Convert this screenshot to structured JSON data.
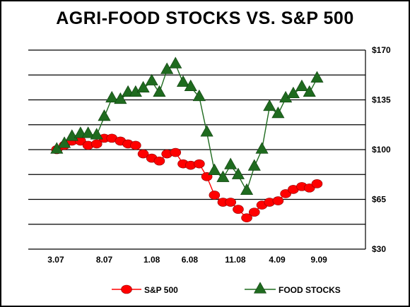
{
  "chart_data": {
    "type": "line",
    "title": "AGRI-FOOD STOCKS VS. S&P 500",
    "xlabel": "",
    "ylabel": "",
    "x_tick_labels": [
      "3.07",
      "8.07",
      "1.08",
      "6.08",
      "11.08",
      "4.09",
      "9.09"
    ],
    "y_tick_labels": [
      "$170",
      "$135",
      "$100",
      "$65",
      "$30"
    ],
    "ylim": [
      30,
      170
    ],
    "grid": "horizontal",
    "legend_position": "bottom",
    "series": [
      {
        "name": "S&P 500",
        "color": "#ff0000",
        "line_color": "#ff0000",
        "marker": "circle",
        "points": [
          {
            "x": 3.0,
            "y": 100
          },
          {
            "x": 3.8,
            "y": 103
          },
          {
            "x": 4.6,
            "y": 106
          },
          {
            "x": 5.5,
            "y": 106
          },
          {
            "x": 6.3,
            "y": 103
          },
          {
            "x": 7.2,
            "y": 104
          },
          {
            "x": 8.0,
            "y": 108
          },
          {
            "x": 8.8,
            "y": 108
          },
          {
            "x": 9.7,
            "y": 106
          },
          {
            "x": 10.5,
            "y": 104
          },
          {
            "x": 11.3,
            "y": 103
          },
          {
            "x": 12.1,
            "y": 97
          },
          {
            "x": 13.0,
            "y": 94
          },
          {
            "x": 13.8,
            "y": 92
          },
          {
            "x": 14.6,
            "y": 97
          },
          {
            "x": 15.5,
            "y": 98
          },
          {
            "x": 16.3,
            "y": 90
          },
          {
            "x": 17.1,
            "y": 89
          },
          {
            "x": 18.0,
            "y": 90
          },
          {
            "x": 18.8,
            "y": 81
          },
          {
            "x": 19.6,
            "y": 68
          },
          {
            "x": 20.5,
            "y": 63
          },
          {
            "x": 21.3,
            "y": 63
          },
          {
            "x": 22.1,
            "y": 58
          },
          {
            "x": 23.0,
            "y": 52
          },
          {
            "x": 23.8,
            "y": 56
          },
          {
            "x": 24.6,
            "y": 61
          },
          {
            "x": 25.4,
            "y": 63
          },
          {
            "x": 26.3,
            "y": 64
          },
          {
            "x": 27.1,
            "y": 69
          },
          {
            "x": 27.9,
            "y": 72
          },
          {
            "x": 28.8,
            "y": 74
          },
          {
            "x": 29.6,
            "y": 73
          },
          {
            "x": 30.4,
            "y": 76
          }
        ]
      },
      {
        "name": "FOOD STOCKS",
        "color": "#1f6b1f",
        "line_color": "#1f6b1f",
        "marker": "triangle",
        "points": [
          {
            "x": 3.0,
            "y": 100
          },
          {
            "x": 3.8,
            "y": 104
          },
          {
            "x": 4.6,
            "y": 109
          },
          {
            "x": 5.5,
            "y": 111
          },
          {
            "x": 6.3,
            "y": 111
          },
          {
            "x": 7.2,
            "y": 110
          },
          {
            "x": 8.0,
            "y": 123
          },
          {
            "x": 8.8,
            "y": 136
          },
          {
            "x": 9.7,
            "y": 135
          },
          {
            "x": 10.5,
            "y": 140
          },
          {
            "x": 11.3,
            "y": 140
          },
          {
            "x": 12.1,
            "y": 143
          },
          {
            "x": 13.0,
            "y": 148
          },
          {
            "x": 13.8,
            "y": 140
          },
          {
            "x": 14.6,
            "y": 156
          },
          {
            "x": 15.5,
            "y": 160
          },
          {
            "x": 16.3,
            "y": 147
          },
          {
            "x": 17.1,
            "y": 144
          },
          {
            "x": 18.0,
            "y": 137
          },
          {
            "x": 18.8,
            "y": 112
          },
          {
            "x": 19.6,
            "y": 85
          },
          {
            "x": 20.5,
            "y": 80
          },
          {
            "x": 21.3,
            "y": 89
          },
          {
            "x": 22.1,
            "y": 82
          },
          {
            "x": 23.0,
            "y": 71
          },
          {
            "x": 23.8,
            "y": 88
          },
          {
            "x": 24.6,
            "y": 100
          },
          {
            "x": 25.4,
            "y": 130
          },
          {
            "x": 26.3,
            "y": 125
          },
          {
            "x": 27.1,
            "y": 136
          },
          {
            "x": 27.9,
            "y": 139
          },
          {
            "x": 28.8,
            "y": 144
          },
          {
            "x": 29.6,
            "y": 140
          },
          {
            "x": 30.4,
            "y": 150
          }
        ]
      }
    ]
  }
}
